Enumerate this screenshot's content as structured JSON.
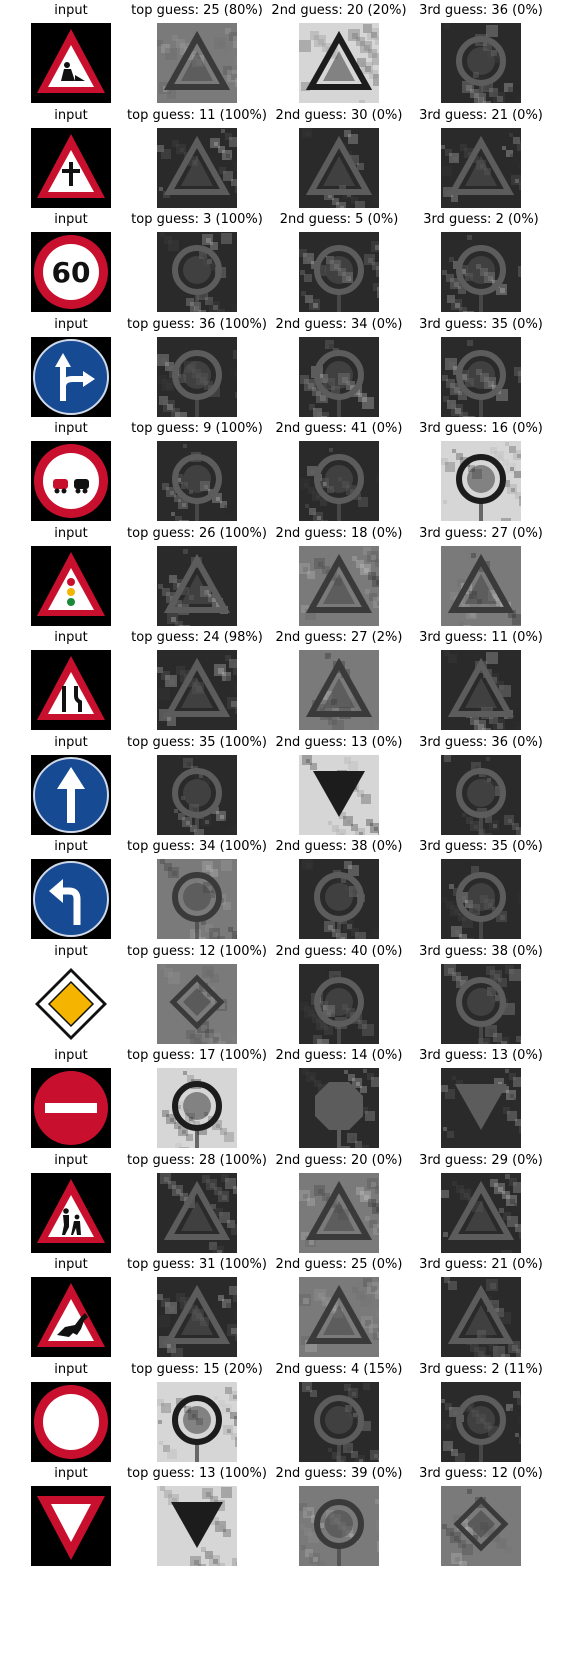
{
  "input_label": "input",
  "rows": [
    {
      "sign": "roadwork",
      "guesses": [
        {
          "label": "top guess: 25 (80%)",
          "tone": "mid",
          "shape": "triangle"
        },
        {
          "label": "2nd guess: 20 (20%)",
          "tone": "light",
          "shape": "triangle"
        },
        {
          "label": "3rd guess: 36 (0%)",
          "tone": "dark",
          "shape": "circle"
        }
      ]
    },
    {
      "sign": "priority-next",
      "guesses": [
        {
          "label": "top guess: 11 (100%)",
          "tone": "dark",
          "shape": "triangle"
        },
        {
          "label": "2nd guess: 30 (0%)",
          "tone": "dark",
          "shape": "triangle"
        },
        {
          "label": "3rd guess: 21 (0%)",
          "tone": "dark",
          "shape": "triangle"
        }
      ]
    },
    {
      "sign": "speed-60",
      "guesses": [
        {
          "label": "top guess: 3 (100%)",
          "tone": "dark",
          "shape": "circle"
        },
        {
          "label": "2nd guess: 5 (0%)",
          "tone": "dark",
          "shape": "circle"
        },
        {
          "label": "3rd guess: 2 (0%)",
          "tone": "dark",
          "shape": "circle"
        }
      ]
    },
    {
      "sign": "straight-right",
      "guesses": [
        {
          "label": "top guess: 36 (100%)",
          "tone": "dark",
          "shape": "circle"
        },
        {
          "label": "2nd guess: 34 (0%)",
          "tone": "dark",
          "shape": "circle"
        },
        {
          "label": "3rd guess: 35 (0%)",
          "tone": "dark",
          "shape": "circle"
        }
      ]
    },
    {
      "sign": "no-passing",
      "guesses": [
        {
          "label": "top guess: 9 (100%)",
          "tone": "dark",
          "shape": "circle"
        },
        {
          "label": "2nd guess: 41 (0%)",
          "tone": "dark",
          "shape": "circle"
        },
        {
          "label": "3rd guess: 16 (0%)",
          "tone": "light",
          "shape": "circle"
        }
      ]
    },
    {
      "sign": "traffic-signals",
      "guesses": [
        {
          "label": "top guess: 26 (100%)",
          "tone": "dark",
          "shape": "triangle"
        },
        {
          "label": "2nd guess: 18 (0%)",
          "tone": "mid",
          "shape": "triangle"
        },
        {
          "label": "3rd guess: 27 (0%)",
          "tone": "mid",
          "shape": "triangle"
        }
      ]
    },
    {
      "sign": "road-narrows",
      "guesses": [
        {
          "label": "top guess: 24 (98%)",
          "tone": "dark",
          "shape": "triangle"
        },
        {
          "label": "2nd guess: 27 (2%)",
          "tone": "mid",
          "shape": "triangle"
        },
        {
          "label": "3rd guess: 11 (0%)",
          "tone": "dark",
          "shape": "triangle"
        }
      ]
    },
    {
      "sign": "ahead-only",
      "guesses": [
        {
          "label": "top guess: 35 (100%)",
          "tone": "dark",
          "shape": "circle"
        },
        {
          "label": "2nd guess: 13 (0%)",
          "tone": "light",
          "shape": "inv-triangle"
        },
        {
          "label": "3rd guess: 36 (0%)",
          "tone": "dark",
          "shape": "circle"
        }
      ]
    },
    {
      "sign": "turn-left",
      "guesses": [
        {
          "label": "top guess: 34 (100%)",
          "tone": "mid",
          "shape": "circle"
        },
        {
          "label": "2nd guess: 38 (0%)",
          "tone": "dark",
          "shape": "circle"
        },
        {
          "label": "3rd guess: 35 (0%)",
          "tone": "dark",
          "shape": "circle"
        }
      ]
    },
    {
      "sign": "priority-road",
      "guesses": [
        {
          "label": "top guess: 12 (100%)",
          "tone": "mid",
          "shape": "diamond"
        },
        {
          "label": "2nd guess: 40 (0%)",
          "tone": "dark",
          "shape": "circle"
        },
        {
          "label": "3rd guess: 38 (0%)",
          "tone": "dark",
          "shape": "circle"
        }
      ]
    },
    {
      "sign": "no-entry",
      "guesses": [
        {
          "label": "top guess: 17 (100%)",
          "tone": "light",
          "shape": "circle"
        },
        {
          "label": "2nd guess: 14 (0%)",
          "tone": "dark",
          "shape": "octagon"
        },
        {
          "label": "3rd guess: 13 (0%)",
          "tone": "dark",
          "shape": "inv-triangle"
        }
      ]
    },
    {
      "sign": "children",
      "guesses": [
        {
          "label": "top guess: 28 (100%)",
          "tone": "dark",
          "shape": "triangle"
        },
        {
          "label": "2nd guess: 20 (0%)",
          "tone": "mid",
          "shape": "triangle"
        },
        {
          "label": "3rd guess: 29 (0%)",
          "tone": "dark",
          "shape": "triangle"
        }
      ]
    },
    {
      "sign": "wild-animals",
      "guesses": [
        {
          "label": "top guess: 31 (100%)",
          "tone": "dark",
          "shape": "triangle"
        },
        {
          "label": "2nd guess: 25 (0%)",
          "tone": "mid",
          "shape": "triangle"
        },
        {
          "label": "3rd guess: 21 (0%)",
          "tone": "dark",
          "shape": "triangle"
        }
      ]
    },
    {
      "sign": "no-vehicles",
      "guesses": [
        {
          "label": "top guess: 15 (20%)",
          "tone": "light",
          "shape": "circle"
        },
        {
          "label": "2nd guess: 4 (15%)",
          "tone": "dark",
          "shape": "circle"
        },
        {
          "label": "3rd guess: 2 (11%)",
          "tone": "dark",
          "shape": "circle"
        }
      ]
    },
    {
      "sign": "yield",
      "guesses": [
        {
          "label": "top guess: 13 (100%)",
          "tone": "light",
          "shape": "inv-triangle"
        },
        {
          "label": "2nd guess: 39 (0%)",
          "tone": "mid",
          "shape": "circle"
        },
        {
          "label": "3rd guess: 12 (0%)",
          "tone": "mid",
          "shape": "diamond"
        }
      ]
    }
  ],
  "colors": {
    "sign_red": "#c8102e",
    "sign_blue": "#164a92",
    "sign_yellow": "#f4b400",
    "sign_white": "#ffffff",
    "background": "#000000"
  }
}
